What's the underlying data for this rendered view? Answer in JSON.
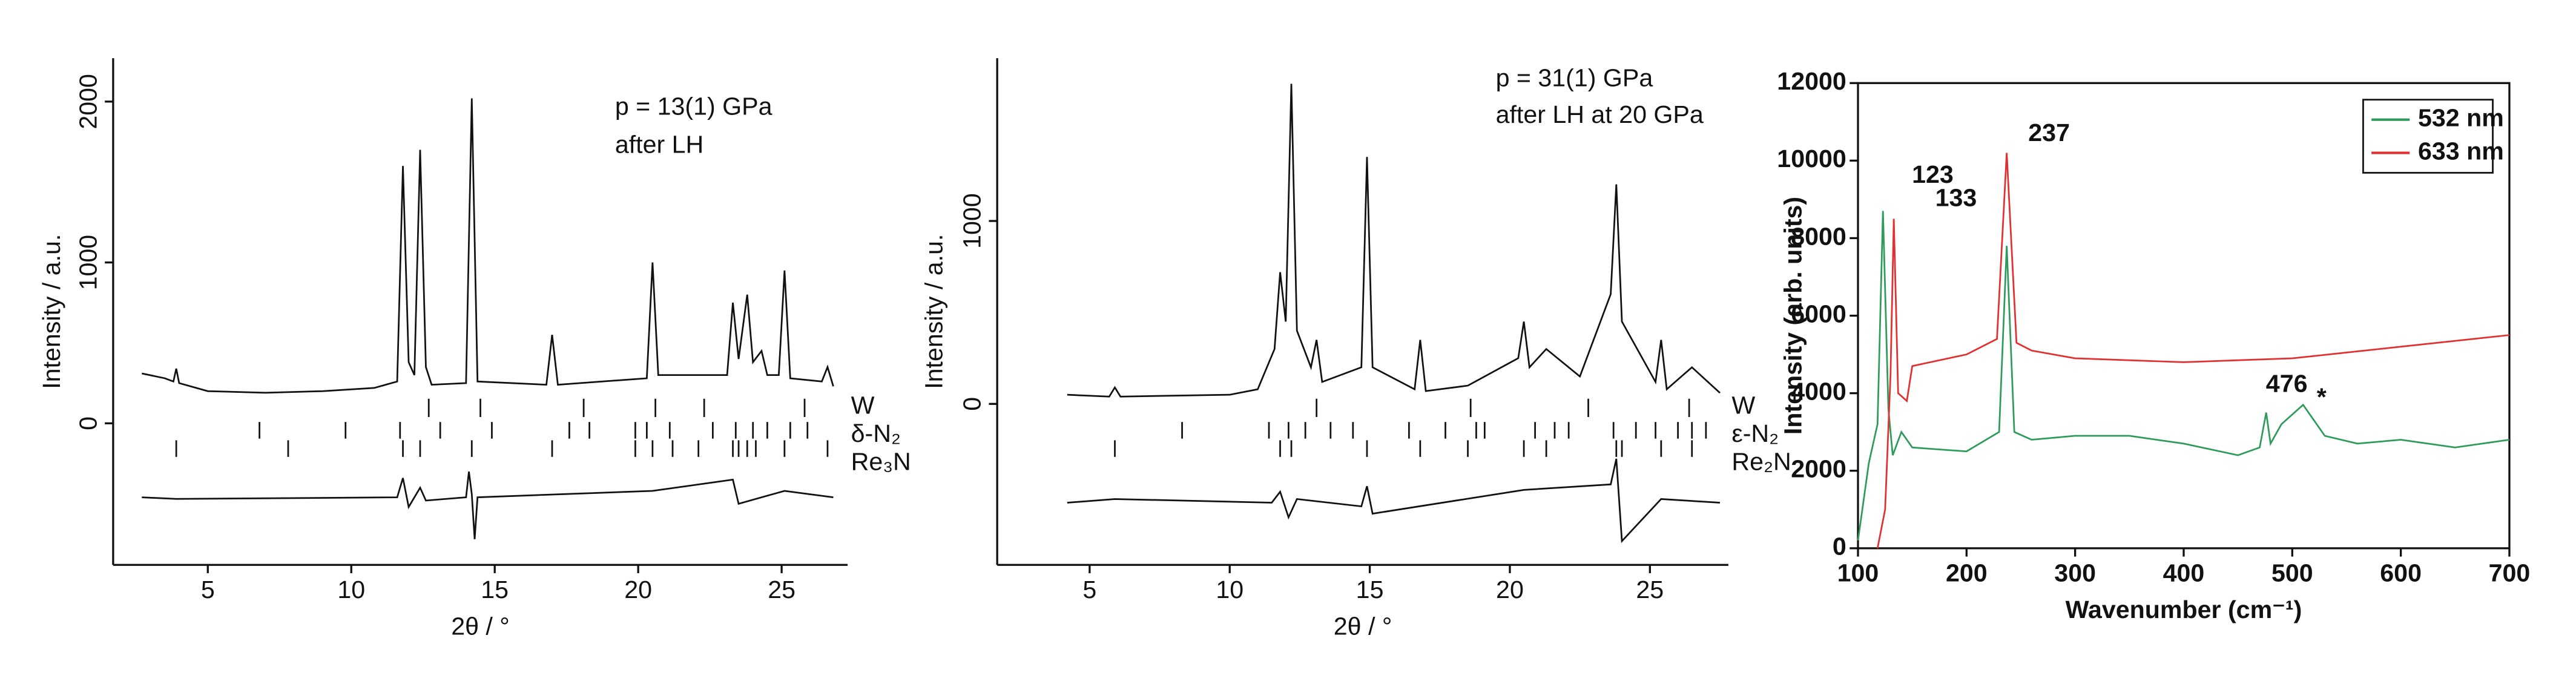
{
  "chart_data": [
    {
      "type": "line",
      "x_label": "2θ / °",
      "y_label": "Intensity / a.u.",
      "annotations": [
        "p = 13(1) GPa",
        "after LH"
      ],
      "xlim": [
        1.7,
        27.3
      ],
      "ylim": [
        -880,
        2270
      ],
      "xticks": [
        5,
        10,
        15,
        20,
        25
      ],
      "yticks": [
        0,
        1000,
        2000
      ],
      "series": [
        {
          "color": "#111111",
          "x": [
            2.7,
            3.5,
            3.8,
            3.9,
            4.0,
            5,
            7,
            9,
            10.8,
            11.6,
            11.8,
            12.0,
            12.2,
            12.4,
            12.6,
            12.8,
            14.0,
            14.2,
            14.4,
            16.8,
            17.0,
            17.2,
            20.3,
            20.5,
            20.7,
            23.1,
            23.3,
            23.5,
            23.8,
            24.0,
            24.3,
            24.5,
            24.9,
            25.1,
            25.3,
            26.4,
            26.6,
            26.8
          ],
          "values": [
            310,
            280,
            260,
            340,
            250,
            200,
            190,
            200,
            220,
            260,
            1600,
            380,
            300,
            1700,
            350,
            240,
            250,
            2020,
            260,
            240,
            550,
            240,
            280,
            1000,
            300,
            300,
            750,
            400,
            800,
            380,
            450,
            300,
            300,
            950,
            280,
            260,
            350,
            230
          ]
        },
        {
          "color": "#111111",
          "x": [
            2.7,
            3.9,
            11.6,
            11.8,
            12.0,
            12.4,
            12.6,
            14.0,
            14.1,
            14.2,
            14.3,
            14.4,
            20.5,
            23.3,
            23.5,
            25.1,
            26.8
          ],
          "values": [
            -460,
            -470,
            -460,
            -340,
            -520,
            -400,
            -480,
            -460,
            -300,
            -440,
            -720,
            -460,
            -420,
            -350,
            -500,
            -420,
            -460
          ]
        }
      ],
      "reflections": [
        {
          "name": "W",
          "positions": [
            12.7,
            14.5,
            18.1,
            20.6,
            22.3,
            25.8
          ]
        },
        {
          "name": "δ-N₂",
          "positions": [
            6.8,
            9.8,
            11.7,
            13.1,
            14.9,
            17.6,
            18.3,
            19.9,
            20.3,
            21.1,
            22.6,
            23.4,
            24.0,
            24.5,
            25.3,
            25.9
          ]
        },
        {
          "name": "Re₃N",
          "positions": [
            3.9,
            7.8,
            11.8,
            12.4,
            14.2,
            17.0,
            19.9,
            20.5,
            21.2,
            22.1,
            23.3,
            23.5,
            23.8,
            24.1,
            25.1,
            26.6
          ]
        }
      ]
    },
    {
      "type": "line",
      "x_label": "2θ / °",
      "y_label": "Intensity / a.u.",
      "annotations": [
        "p = 31(1) GPa",
        "after LH at 20 GPa"
      ],
      "xlim": [
        1.7,
        27.8
      ],
      "ylim": [
        -880,
        1890
      ],
      "xticks": [
        5,
        10,
        15,
        20,
        25
      ],
      "yticks": [
        0,
        1000
      ],
      "series": [
        {
          "color": "#111111",
          "x": [
            4.2,
            5.7,
            5.9,
            6.1,
            10,
            11.0,
            11.6,
            11.8,
            12.0,
            12.2,
            12.4,
            12.9,
            13.1,
            13.3,
            14.7,
            14.9,
            15.1,
            16.6,
            16.8,
            17.0,
            18.5,
            20.3,
            20.5,
            20.7,
            21.3,
            22.5,
            23.6,
            23.8,
            24.0,
            25.2,
            25.4,
            25.6,
            26.5,
            27.5
          ],
          "values": [
            50,
            40,
            90,
            40,
            50,
            80,
            300,
            720,
            450,
            1750,
            400,
            200,
            350,
            120,
            200,
            1350,
            200,
            80,
            350,
            70,
            100,
            250,
            450,
            200,
            300,
            150,
            600,
            1200,
            450,
            120,
            350,
            80,
            200,
            60
          ]
        },
        {
          "color": "#111111",
          "x": [
            4.2,
            5.9,
            11.5,
            11.8,
            12.1,
            12.4,
            14.7,
            14.9,
            15.1,
            20.5,
            23.6,
            23.8,
            24.0,
            25.4,
            27.5
          ],
          "values": [
            -540,
            -520,
            -540,
            -480,
            -620,
            -520,
            -560,
            -450,
            -600,
            -470,
            -440,
            -300,
            -750,
            -520,
            -540
          ]
        }
      ],
      "reflections": [
        {
          "name": "W",
          "positions": [
            13.1,
            18.6,
            22.8,
            26.4
          ]
        },
        {
          "name": "ε-N₂",
          "positions": [
            8.3,
            11.4,
            12.1,
            12.7,
            13.6,
            14.4,
            16.4,
            17.7,
            18.8,
            19.1,
            20.9,
            21.6,
            22.1,
            23.7,
            24.5,
            25.2,
            26.0,
            26.5,
            27.0
          ]
        },
        {
          "name": "Re₂N",
          "positions": [
            5.9,
            11.8,
            12.2,
            14.9,
            16.8,
            18.5,
            20.5,
            21.3,
            23.8,
            24.0,
            25.4,
            26.5
          ]
        }
      ]
    },
    {
      "type": "line",
      "x_label": "Wavenumber (cm⁻¹)",
      "y_label": "Intensity (arb. units)",
      "annotations": [
        "123",
        "133",
        "237",
        "476",
        "*"
      ],
      "xlim": [
        100,
        700
      ],
      "ylim": [
        0,
        12000
      ],
      "xticks": [
        100,
        200,
        300,
        400,
        500,
        600,
        700
      ],
      "yticks": [
        0,
        2000,
        4000,
        6000,
        8000,
        10000,
        12000
      ],
      "legend": "upper right",
      "series": [
        {
          "name": "532 nm",
          "color": "#2e9b5a",
          "x": [
            100,
            105,
            110,
            118,
            123,
            128,
            132,
            140,
            150,
            200,
            230,
            237,
            244,
            260,
            300,
            350,
            400,
            450,
            470,
            476,
            480,
            490,
            510,
            530,
            560,
            600,
            650,
            700
          ],
          "values": [
            200,
            1200,
            2200,
            3200,
            8700,
            3600,
            2400,
            3000,
            2600,
            2500,
            3000,
            7800,
            3000,
            2800,
            2900,
            2900,
            2700,
            2400,
            2600,
            3500,
            2700,
            3200,
            3700,
            2900,
            2700,
            2800,
            2600,
            2800
          ]
        },
        {
          "name": "633 nm",
          "color": "#e03030",
          "x": [
            118,
            125,
            130,
            133,
            137,
            145,
            150,
            200,
            228,
            237,
            246,
            260,
            300,
            400,
            500,
            600,
            700
          ],
          "values": [
            0,
            1000,
            4500,
            8500,
            4000,
            3800,
            4700,
            5000,
            5400,
            10200,
            5300,
            5100,
            4900,
            4800,
            4900,
            5200,
            5500
          ]
        }
      ]
    }
  ]
}
